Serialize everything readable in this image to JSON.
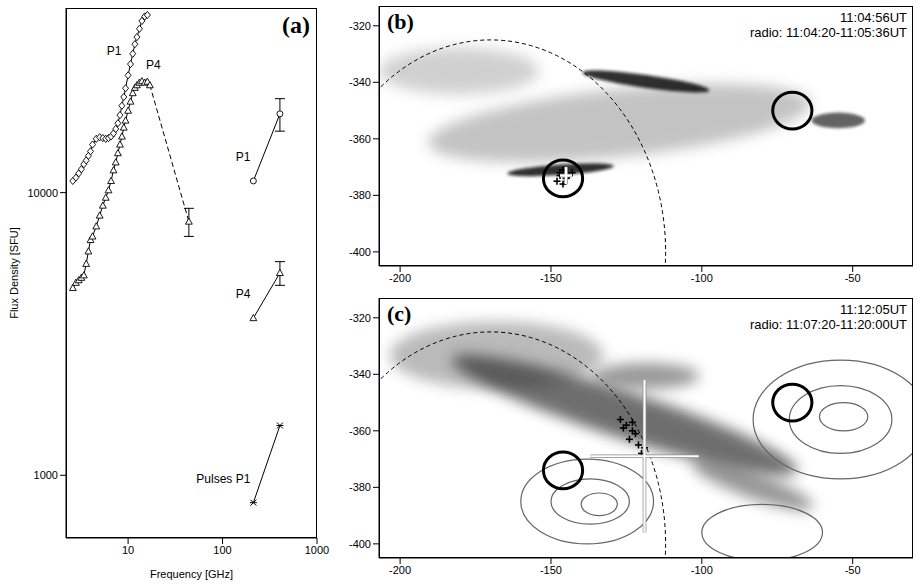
{
  "chart_data": [
    {
      "type": "line",
      "panel_label": "(a)",
      "x_label": "Frequency [GHz]",
      "y_label": "Flux Density [SFU]",
      "log": true,
      "xlim": [
        2.2,
        1000
      ],
      "ylim": [
        600,
        45000
      ],
      "xticks": [
        10,
        100,
        1000
      ],
      "yticks": [
        1000,
        10000
      ],
      "series": [
        {
          "name": "P1",
          "marker": "diamond",
          "line_style": "solid",
          "x": [
            2.6,
            2.8,
            3.0,
            3.2,
            3.4,
            3.6,
            3.8,
            4.0,
            4.2,
            4.6,
            5.0,
            5.4,
            5.8,
            6.2,
            6.6,
            7.0,
            7.4,
            7.8,
            8.2,
            8.6,
            9.0,
            9.4,
            10.0,
            10.6,
            11.2,
            11.8,
            12.4,
            13.2,
            14.0,
            15.0,
            16.0
          ],
          "values": [
            11000,
            11300,
            11700,
            12100,
            12600,
            13000,
            13500,
            14000,
            14800,
            15500,
            15700,
            15600,
            15500,
            15600,
            15800,
            16200,
            16800,
            17600,
            18800,
            20300,
            21800,
            23400,
            26000,
            28500,
            31000,
            33500,
            35500,
            38000,
            40500,
            42000,
            42500
          ]
        },
        {
          "name": "P4",
          "marker": "triangle",
          "line_style": "solid",
          "x": [
            2.6,
            2.8,
            3.0,
            3.2,
            3.4,
            3.6,
            3.8,
            4.0,
            4.2,
            4.6,
            5.0,
            5.4,
            5.8,
            6.2,
            6.6,
            7.0,
            7.4,
            7.8,
            8.2,
            8.6,
            9.0,
            9.4,
            10.0,
            10.6,
            11.2,
            11.8,
            12.4,
            13.2,
            14.0,
            15.0,
            16.0,
            17.0,
            44.0
          ],
          "values": [
            4600,
            4800,
            4900,
            5000,
            5100,
            5600,
            6200,
            6800,
            7000,
            7600,
            8300,
            9000,
            9600,
            10200,
            11000,
            12000,
            12800,
            13800,
            14800,
            15800,
            17000,
            18000,
            19500,
            21000,
            22500,
            23500,
            24000,
            24500,
            24800,
            24500,
            24700,
            24000,
            7900
          ],
          "errors": [
            null,
            null,
            null,
            null,
            null,
            null,
            null,
            null,
            null,
            null,
            null,
            null,
            null,
            null,
            null,
            null,
            null,
            null,
            null,
            null,
            null,
            null,
            null,
            null,
            null,
            null,
            null,
            null,
            null,
            null,
            null,
            null,
            900
          ]
        },
        {
          "name": "P1",
          "marker": "circle",
          "line_style": "solid",
          "x": [
            212,
            405
          ],
          "values": [
            11000,
            19000
          ],
          "errors": [
            null,
            2500
          ]
        },
        {
          "name": "P4",
          "marker": "triangle",
          "line_style": "solid",
          "x": [
            212,
            405
          ],
          "values": [
            3600,
            5200
          ],
          "errors": [
            null,
            500
          ]
        },
        {
          "name": "Pulses P1",
          "marker": "x",
          "line_style": "solid",
          "x": [
            212,
            405
          ],
          "values": [
            800,
            1500
          ]
        }
      ]
    },
    {
      "type": "image",
      "panel_label": "(b)",
      "annotations": [
        "11:04:56UT",
        "radio: 11:04:20-11:05:36UT"
      ],
      "xlim": [
        -207,
        -30
      ],
      "ylim": [
        -405,
        -313
      ],
      "xticks": [
        -200,
        -150,
        -100,
        -50
      ],
      "yticks": [
        -320,
        -340,
        -360,
        -380,
        -400
      ],
      "limb": {
        "x": -170,
        "y": -400,
        "rx": 58,
        "ry": 75
      },
      "circles": [
        {
          "x": -146,
          "y": -374,
          "r": 6.5
        },
        {
          "x": -70,
          "y": -350,
          "r": 6.5
        }
      ],
      "crosses": {
        "x": [
          -147,
          -145,
          -146,
          -144,
          -148,
          -146,
          -143,
          -147
        ],
        "y": [
          -372,
          -374,
          -371,
          -373,
          -375,
          -376,
          -372,
          -373
        ]
      },
      "centroid": {
        "x": -145,
        "y": -373,
        "x_error": 2,
        "y_error": 3
      }
    },
    {
      "type": "image",
      "panel_label": "(c)",
      "annotations": [
        "11:12:05UT",
        "radio: 11:07:20-11:20:00UT"
      ],
      "xlim": [
        -207,
        -30
      ],
      "ylim": [
        -405,
        -313
      ],
      "xticks": [
        -200,
        -150,
        -100,
        -50
      ],
      "yticks": [
        -320,
        -340,
        -360,
        -380,
        -400
      ],
      "limb": {
        "x": -170,
        "y": -400,
        "rx": 58,
        "ry": 75
      },
      "circles": [
        {
          "x": -146,
          "y": -374,
          "r": 6.5
        },
        {
          "x": -70,
          "y": -350,
          "r": 6.5
        }
      ],
      "crosses": {
        "x": [
          -127,
          -125,
          -123,
          -124,
          -121,
          -120,
          -122,
          -126,
          -119,
          -123
        ],
        "y": [
          -356,
          -358,
          -360,
          -363,
          -365,
          -368,
          -361,
          -359,
          -366,
          -357
        ]
      },
      "centroid": {
        "x": -119,
        "y": -369,
        "x_error": 18,
        "y_error": 27
      },
      "contours": [
        {
          "x": -138,
          "y": -385,
          "rx": 22,
          "ry": 15
        },
        {
          "x": -137,
          "y": -385,
          "rx": 13,
          "ry": 8
        },
        {
          "x": -134,
          "y": -386,
          "rx": 6,
          "ry": 4
        },
        {
          "x": -54,
          "y": -356,
          "rx": 29,
          "ry": 21
        },
        {
          "x": -54,
          "y": -356,
          "rx": 17,
          "ry": 12
        },
        {
          "x": -53,
          "y": -355,
          "rx": 8,
          "ry": 5
        },
        {
          "x": -80,
          "y": -396,
          "rx": 20,
          "ry": 10
        }
      ]
    }
  ]
}
